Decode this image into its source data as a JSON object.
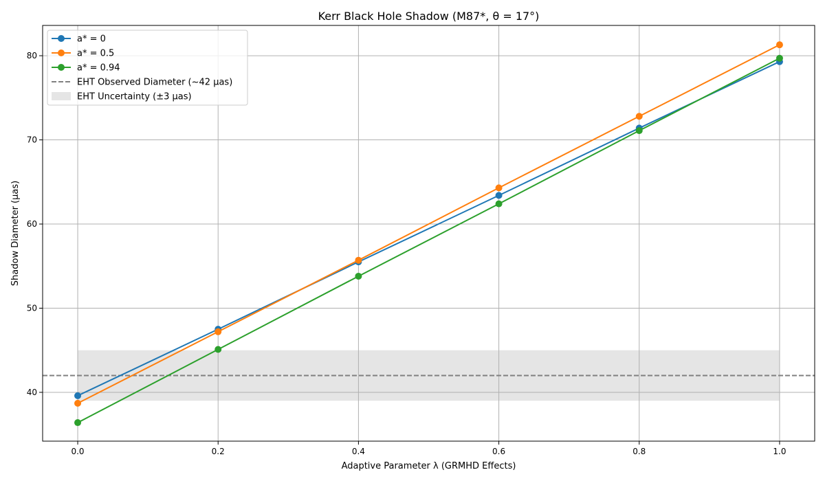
{
  "chart_data": {
    "type": "line",
    "title": "Kerr Black Hole Shadow (M87*, θ = 17°)",
    "xlabel": "Adaptive Parameter λ (GRMHD Effects)",
    "ylabel": "Shadow Diameter (μas)",
    "xlim": [
      -0.05,
      1.05
    ],
    "ylim": [
      34.2,
      83.6
    ],
    "xticks": [
      "0.0",
      "0.2",
      "0.4",
      "0.6",
      "0.8",
      "1.0"
    ],
    "yticks": [
      "40",
      "50",
      "60",
      "70",
      "80"
    ],
    "grid": true,
    "legend_position": "upper-left",
    "x": [
      0.0,
      0.2,
      0.4,
      0.6,
      0.8,
      1.0
    ],
    "series": [
      {
        "name": "a* = 0",
        "color": "#1f77b4",
        "values": [
          39.6,
          47.5,
          55.5,
          63.4,
          71.4,
          79.3
        ]
      },
      {
        "name": "a* = 0.5",
        "color": "#ff7f0e",
        "values": [
          38.7,
          47.2,
          55.7,
          64.3,
          72.8,
          81.3
        ]
      },
      {
        "name": "a* = 0.94",
        "color": "#2ca02c",
        "values": [
          36.4,
          45.1,
          53.8,
          62.4,
          71.1,
          79.7
        ]
      }
    ],
    "reference_line": {
      "name": "EHT Observed Diameter (~42 μas)",
      "y": 42,
      "color": "#808080",
      "style": "dashed"
    },
    "band": {
      "name": "EHT Uncertainty (±3 μas)",
      "y_min": 39,
      "y_max": 45,
      "x_min": 0.0,
      "x_max": 1.0,
      "color": "#d3d3d3"
    }
  }
}
